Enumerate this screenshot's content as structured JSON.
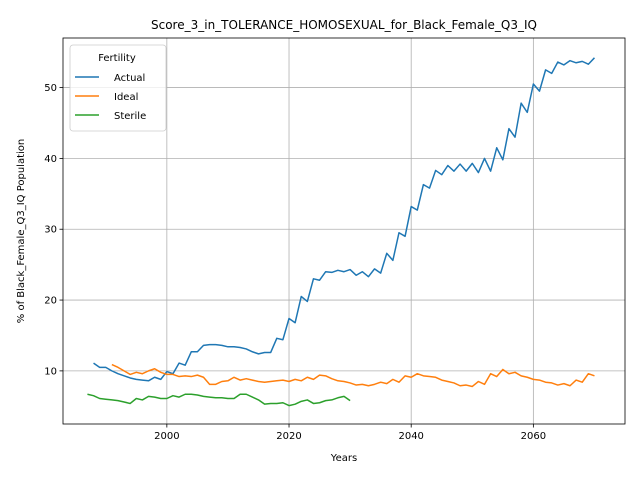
{
  "chart_data": {
    "type": "line",
    "title": "Score_3_in_TOLERANCE_HOMOSEXUAL_for_Black_Female_Q3_IQ",
    "xlabel": "Years",
    "ylabel": "% of Black_Female_Q3_IQ Population",
    "xlim": [
      1983,
      2075
    ],
    "ylim": [
      2.5,
      57
    ],
    "x_ticks": [
      2000,
      2020,
      2040,
      2060
    ],
    "y_ticks": [
      10,
      20,
      30,
      40,
      50
    ],
    "grid": true,
    "legend": {
      "title": "Fertility",
      "placement": "top-left"
    },
    "series": [
      {
        "name": "Actual",
        "color": "#1f77b4",
        "x": [
          1988,
          1989,
          1990,
          1991,
          1992,
          1993,
          1994,
          1995,
          1996,
          1997,
          1998,
          1999,
          2000,
          2001,
          2002,
          2003,
          2004,
          2005,
          2006,
          2007,
          2008,
          2009,
          2010,
          2011,
          2012,
          2013,
          2014,
          2015,
          2016,
          2017,
          2018,
          2019,
          2020,
          2021,
          2022,
          2023,
          2024,
          2025,
          2026,
          2027,
          2028,
          2029,
          2030,
          2031,
          2032,
          2033,
          2034,
          2035,
          2036,
          2037,
          2038,
          2039,
          2040,
          2041,
          2042,
          2043,
          2044,
          2045,
          2046,
          2047,
          2048,
          2049,
          2050,
          2051,
          2052,
          2053,
          2054,
          2055,
          2056,
          2057,
          2058,
          2059,
          2060,
          2061,
          2062,
          2063,
          2064,
          2065,
          2066,
          2067,
          2068,
          2069,
          2070
        ],
        "values": [
          11.1,
          10.5,
          10.5,
          10.0,
          9.6,
          9.3,
          9.0,
          8.8,
          8.7,
          8.6,
          9.1,
          8.8,
          9.9,
          9.6,
          11.1,
          10.8,
          12.7,
          12.7,
          13.6,
          13.7,
          13.7,
          13.6,
          13.4,
          13.4,
          13.3,
          13.1,
          12.7,
          12.4,
          12.6,
          12.6,
          14.6,
          14.4,
          17.4,
          16.8,
          20.5,
          19.8,
          23.0,
          22.8,
          24.0,
          23.9,
          24.2,
          24.0,
          24.3,
          23.5,
          24.0,
          23.3,
          24.4,
          23.8,
          26.6,
          25.6,
          29.5,
          29.0,
          33.2,
          32.7,
          36.3,
          35.8,
          38.3,
          37.7,
          39.0,
          38.2,
          39.2,
          38.2,
          39.3,
          38.0,
          40.0,
          38.2,
          41.5,
          39.8,
          44.2,
          43.0,
          47.8,
          46.5,
          50.5,
          49.5,
          52.5,
          52.0,
          53.6,
          53.2,
          53.8,
          53.5,
          53.7,
          53.3,
          54.2
        ]
      },
      {
        "name": "Ideal",
        "color": "#ff7f0e",
        "x": [
          1991,
          1992,
          1993,
          1994,
          1995,
          1996,
          1997,
          1998,
          1999,
          2000,
          2001,
          2002,
          2003,
          2004,
          2005,
          2006,
          2007,
          2008,
          2009,
          2010,
          2011,
          2012,
          2013,
          2014,
          2015,
          2016,
          2017,
          2018,
          2019,
          2020,
          2021,
          2022,
          2023,
          2024,
          2025,
          2026,
          2027,
          2028,
          2029,
          2030,
          2031,
          2032,
          2033,
          2034,
          2035,
          2036,
          2037,
          2038,
          2039,
          2040,
          2041,
          2042,
          2043,
          2044,
          2045,
          2046,
          2047,
          2048,
          2049,
          2050,
          2051,
          2052,
          2053,
          2054,
          2055,
          2056,
          2057,
          2058,
          2059,
          2060,
          2061,
          2062,
          2063,
          2064,
          2065,
          2066,
          2067,
          2068,
          2069,
          2070
        ],
        "values": [
          10.9,
          10.5,
          10.0,
          9.5,
          9.8,
          9.6,
          10.0,
          10.3,
          9.8,
          9.5,
          9.5,
          9.2,
          9.3,
          9.2,
          9.4,
          9.1,
          8.1,
          8.1,
          8.5,
          8.6,
          9.1,
          8.7,
          8.9,
          8.7,
          8.5,
          8.4,
          8.5,
          8.6,
          8.7,
          8.5,
          8.8,
          8.6,
          9.1,
          8.8,
          9.4,
          9.3,
          8.9,
          8.6,
          8.5,
          8.3,
          8.0,
          8.1,
          7.9,
          8.1,
          8.4,
          8.2,
          8.8,
          8.4,
          9.3,
          9.1,
          9.6,
          9.3,
          9.2,
          9.1,
          8.7,
          8.5,
          8.3,
          7.9,
          8.0,
          7.8,
          8.5,
          8.1,
          9.6,
          9.2,
          10.2,
          9.6,
          9.8,
          9.3,
          9.1,
          8.8,
          8.7,
          8.4,
          8.3,
          8.0,
          8.2,
          7.9,
          8.7,
          8.4,
          9.6,
          9.3
        ]
      },
      {
        "name": "Sterile",
        "color": "#2ca02c",
        "x": [
          1987,
          1988,
          1989,
          1990,
          1991,
          1992,
          1993,
          1994,
          1995,
          1996,
          1997,
          1998,
          1999,
          2000,
          2001,
          2002,
          2003,
          2004,
          2005,
          2006,
          2007,
          2008,
          2009,
          2010,
          2011,
          2012,
          2013,
          2014,
          2015,
          2016,
          2017,
          2018,
          2019,
          2020,
          2021,
          2022,
          2023,
          2024,
          2025,
          2026,
          2027,
          2028,
          2029,
          2030
        ],
        "values": [
          6.7,
          6.5,
          6.1,
          6.0,
          5.9,
          5.8,
          5.6,
          5.4,
          6.1,
          5.9,
          6.4,
          6.3,
          6.1,
          6.1,
          6.5,
          6.3,
          6.7,
          6.7,
          6.6,
          6.4,
          6.3,
          6.2,
          6.2,
          6.1,
          6.1,
          6.7,
          6.7,
          6.3,
          5.9,
          5.3,
          5.4,
          5.4,
          5.5,
          5.1,
          5.3,
          5.7,
          5.9,
          5.4,
          5.5,
          5.8,
          5.9,
          6.2,
          6.4,
          5.8
        ]
      }
    ]
  }
}
